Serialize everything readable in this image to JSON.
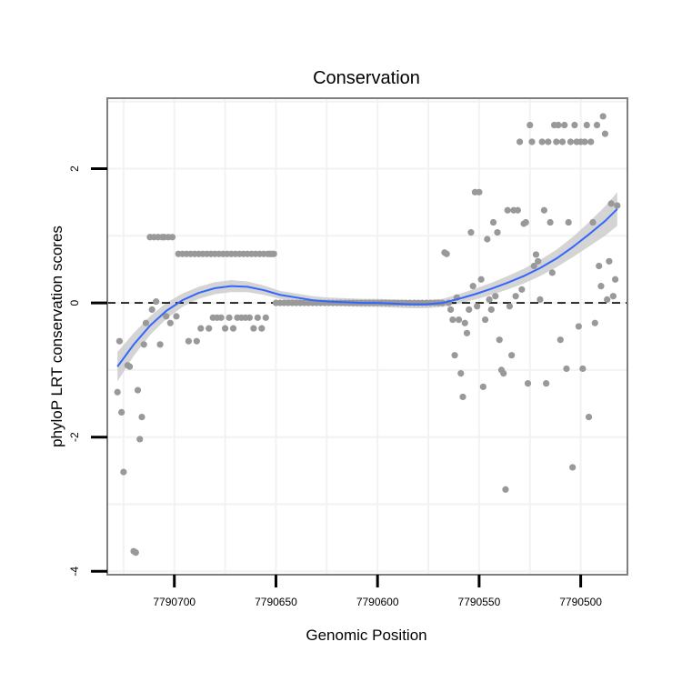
{
  "chart_data": {
    "type": "scatter",
    "title": "Conservation",
    "xlabel": "Genomic Position",
    "ylabel": "phyloP LRT conservation scores",
    "xlim": [
      7790733,
      7790477
    ],
    "ylim": [
      -4.05,
      3.05
    ],
    "x_reversed": true,
    "grid": true,
    "x_ticks": [
      7790700,
      7790650,
      7790600,
      7790550,
      7790500
    ],
    "x_tick_labels": [
      "7790700",
      "7790650",
      "7790600",
      "7790550",
      "7790500"
    ],
    "y_ticks": [
      -4,
      -2,
      0,
      2
    ],
    "y_tick_labels": [
      "-4",
      "-2",
      "0",
      "2"
    ],
    "reference_line": {
      "y": 0,
      "style": "dashed"
    },
    "colors": {
      "points": "#999999",
      "smooth": "#3366ff",
      "ribbon": "#cccccc",
      "panel_border": "#7f7f7f",
      "grid": "#f2f2f2"
    },
    "points": [
      [
        7790728,
        -1.33
      ],
      [
        7790727,
        -0.57
      ],
      [
        7790726,
        -1.63
      ],
      [
        7790725,
        -2.52
      ],
      [
        7790723,
        -0.93
      ],
      [
        7790722,
        -0.95
      ],
      [
        7790720,
        -3.7
      ],
      [
        7790719,
        -3.72
      ],
      [
        7790718,
        -1.3
      ],
      [
        7790717,
        -2.03
      ],
      [
        7790716,
        -1.7
      ],
      [
        7790715,
        -0.62
      ],
      [
        7790714,
        -0.3
      ],
      [
        7790712,
        0.98
      ],
      [
        7790711,
        -0.1
      ],
      [
        7790710,
        0.98
      ],
      [
        7790709,
        0.02
      ],
      [
        7790708,
        0.98
      ],
      [
        7790707,
        -0.62
      ],
      [
        7790706,
        0.98
      ],
      [
        7790705,
        0.98
      ],
      [
        7790704,
        -0.2
      ],
      [
        7790703,
        0.98
      ],
      [
        7790702,
        -0.3
      ],
      [
        7790701,
        0.98
      ],
      [
        7790699,
        -0.2
      ],
      [
        7790698,
        0.73
      ],
      [
        7790696,
        0.73
      ],
      [
        7790694,
        0.73
      ],
      [
        7790693,
        -0.57
      ],
      [
        7790692,
        0.73
      ],
      [
        7790690,
        0.73
      ],
      [
        7790689,
        -0.57
      ],
      [
        7790688,
        0.73
      ],
      [
        7790687,
        -0.38
      ],
      [
        7790686,
        0.73
      ],
      [
        7790684,
        0.73
      ],
      [
        7790683,
        -0.38
      ],
      [
        7790682,
        0.73
      ],
      [
        7790681,
        -0.22
      ],
      [
        7790680,
        0.73
      ],
      [
        7790679,
        -0.22
      ],
      [
        7790678,
        0.73
      ],
      [
        7790677,
        -0.22
      ],
      [
        7790676,
        0.73
      ],
      [
        7790675,
        -0.38
      ],
      [
        7790674,
        0.73
      ],
      [
        7790673,
        -0.22
      ],
      [
        7790672,
        0.73
      ],
      [
        7790671,
        -0.38
      ],
      [
        7790670,
        0.73
      ],
      [
        7790669,
        -0.22
      ],
      [
        7790668,
        0.73
      ],
      [
        7790667,
        -0.22
      ],
      [
        7790666,
        0.73
      ],
      [
        7790665,
        -0.22
      ],
      [
        7790664,
        0.73
      ],
      [
        7790663,
        -0.22
      ],
      [
        7790662,
        0.73
      ],
      [
        7790661,
        -0.38
      ],
      [
        7790660,
        0.73
      ],
      [
        7790659,
        -0.22
      ],
      [
        7790658,
        0.73
      ],
      [
        7790657,
        -0.38
      ],
      [
        7790656,
        0.73
      ],
      [
        7790655,
        -0.22
      ],
      [
        7790654,
        0.73
      ],
      [
        7790653,
        0.73
      ],
      [
        7790652,
        0.73
      ],
      [
        7790651,
        0.73
      ],
      [
        7790650,
        0.0
      ],
      [
        7790648,
        0.0
      ],
      [
        7790646,
        0.0
      ],
      [
        7790644,
        0.0
      ],
      [
        7790642,
        0.0
      ],
      [
        7790640,
        0.0
      ],
      [
        7790638,
        0.0
      ],
      [
        7790636,
        0.0
      ],
      [
        7790634,
        0.0
      ],
      [
        7790632,
        0.0
      ],
      [
        7790630,
        0.0
      ],
      [
        7790628,
        0.0
      ],
      [
        7790626,
        0.0
      ],
      [
        7790624,
        0.0
      ],
      [
        7790622,
        0.0
      ],
      [
        7790620,
        0.0
      ],
      [
        7790618,
        0.0
      ],
      [
        7790616,
        0.0
      ],
      [
        7790614,
        0.0
      ],
      [
        7790612,
        0.0
      ],
      [
        7790610,
        0.0
      ],
      [
        7790608,
        0.0
      ],
      [
        7790606,
        0.0
      ],
      [
        7790604,
        0.0
      ],
      [
        7790602,
        0.0
      ],
      [
        7790600,
        0.0
      ],
      [
        7790598,
        0.0
      ],
      [
        7790596,
        0.0
      ],
      [
        7790594,
        0.0
      ],
      [
        7790592,
        0.0
      ],
      [
        7790590,
        0.0
      ],
      [
        7790588,
        0.0
      ],
      [
        7790586,
        0.0
      ],
      [
        7790584,
        0.0
      ],
      [
        7790582,
        0.0
      ],
      [
        7790580,
        0.0
      ],
      [
        7790578,
        0.0
      ],
      [
        7790576,
        0.0
      ],
      [
        7790574,
        0.0
      ],
      [
        7790572,
        0.0
      ],
      [
        7790570,
        0.0
      ],
      [
        7790568,
        0.0
      ],
      [
        7790567,
        0.75
      ],
      [
        7790566,
        0.73
      ],
      [
        7790565,
        0.0
      ],
      [
        7790564,
        -0.1
      ],
      [
        7790563,
        -0.25
      ],
      [
        7790562,
        -0.78
      ],
      [
        7790561,
        0.08
      ],
      [
        7790560,
        -0.25
      ],
      [
        7790559,
        -1.05
      ],
      [
        7790558,
        -1.4
      ],
      [
        7790557,
        -0.3
      ],
      [
        7790556,
        -0.45
      ],
      [
        7790555,
        -0.1
      ],
      [
        7790554,
        1.05
      ],
      [
        7790553,
        0.25
      ],
      [
        7790552,
        1.65
      ],
      [
        7790551,
        -0.05
      ],
      [
        7790550,
        1.65
      ],
      [
        7790549,
        0.35
      ],
      [
        7790548,
        -1.25
      ],
      [
        7790547,
        -0.25
      ],
      [
        7790546,
        0.95
      ],
      [
        7790545,
        0.05
      ],
      [
        7790544,
        -0.1
      ],
      [
        7790543,
        1.2
      ],
      [
        7790542,
        0.1
      ],
      [
        7790541,
        1.05
      ],
      [
        7790540,
        -0.55
      ],
      [
        7790539,
        -1.0
      ],
      [
        7790538,
        -1.05
      ],
      [
        7790537,
        -2.78
      ],
      [
        7790536,
        1.38
      ],
      [
        7790535,
        -0.05
      ],
      [
        7790534,
        -0.78
      ],
      [
        7790533,
        1.38
      ],
      [
        7790532,
        0.1
      ],
      [
        7790531,
        1.38
      ],
      [
        7790530,
        2.4
      ],
      [
        7790529,
        0.2
      ],
      [
        7790528,
        1.18
      ],
      [
        7790527,
        1.2
      ],
      [
        7790526,
        -1.2
      ],
      [
        7790525,
        2.65
      ],
      [
        7790524,
        2.4
      ],
      [
        7790523,
        0.55
      ],
      [
        7790522,
        0.72
      ],
      [
        7790521,
        0.62
      ],
      [
        7790520,
        0.05
      ],
      [
        7790519,
        2.4
      ],
      [
        7790518,
        1.38
      ],
      [
        7790517,
        -1.2
      ],
      [
        7790516,
        2.4
      ],
      [
        7790515,
        1.2
      ],
      [
        7790514,
        0.45
      ],
      [
        7790513,
        2.65
      ],
      [
        7790512,
        2.4
      ],
      [
        7790511,
        2.65
      ],
      [
        7790510,
        -0.55
      ],
      [
        7790509,
        2.4
      ],
      [
        7790508,
        2.65
      ],
      [
        7790507,
        -0.98
      ],
      [
        7790506,
        1.2
      ],
      [
        7790505,
        2.4
      ],
      [
        7790504,
        -2.45
      ],
      [
        7790503,
        2.65
      ],
      [
        7790502,
        2.4
      ],
      [
        7790501,
        -0.35
      ],
      [
        7790500,
        2.4
      ],
      [
        7790499,
        -0.98
      ],
      [
        7790498,
        2.4
      ],
      [
        7790497,
        2.65
      ],
      [
        7790496,
        -1.7
      ],
      [
        7790495,
        2.4
      ],
      [
        7790494,
        1.2
      ],
      [
        7790493,
        -0.3
      ],
      [
        7790492,
        2.65
      ],
      [
        7790491,
        0.55
      ],
      [
        7790490,
        0.25
      ],
      [
        7790489,
        2.78
      ],
      [
        7790488,
        2.52
      ],
      [
        7790487,
        0.05
      ],
      [
        7790486,
        0.62
      ],
      [
        7790485,
        1.48
      ],
      [
        7790484,
        0.1
      ],
      [
        7790483,
        0.35
      ],
      [
        7790482,
        1.45
      ]
    ],
    "smooth_curve": [
      [
        7790728,
        -0.95,
        0.22
      ],
      [
        7790720,
        -0.62,
        0.17
      ],
      [
        7790712,
        -0.34,
        0.14
      ],
      [
        7790704,
        -0.12,
        0.12
      ],
      [
        7790696,
        0.04,
        0.1
      ],
      [
        7790688,
        0.15,
        0.09
      ],
      [
        7790680,
        0.22,
        0.09
      ],
      [
        7790672,
        0.25,
        0.09
      ],
      [
        7790664,
        0.24,
        0.08
      ],
      [
        7790656,
        0.19,
        0.07
      ],
      [
        7790648,
        0.12,
        0.06
      ],
      [
        7790640,
        0.08,
        0.06
      ],
      [
        7790632,
        0.04,
        0.06
      ],
      [
        7790624,
        0.02,
        0.06
      ],
      [
        7790616,
        0.01,
        0.06
      ],
      [
        7790608,
        0.0,
        0.06
      ],
      [
        7790600,
        0.0,
        0.06
      ],
      [
        7790592,
        -0.01,
        0.06
      ],
      [
        7790584,
        -0.02,
        0.06
      ],
      [
        7790576,
        -0.02,
        0.06
      ],
      [
        7790568,
        0.0,
        0.06
      ],
      [
        7790560,
        0.06,
        0.07
      ],
      [
        7790552,
        0.13,
        0.08
      ],
      [
        7790544,
        0.21,
        0.09
      ],
      [
        7790536,
        0.3,
        0.1
      ],
      [
        7790528,
        0.4,
        0.11
      ],
      [
        7790520,
        0.52,
        0.12
      ],
      [
        7790512,
        0.66,
        0.13
      ],
      [
        7790504,
        0.83,
        0.15
      ],
      [
        7790496,
        1.02,
        0.18
      ],
      [
        7790488,
        1.22,
        0.22
      ],
      [
        7790482,
        1.4,
        0.25
      ]
    ]
  }
}
